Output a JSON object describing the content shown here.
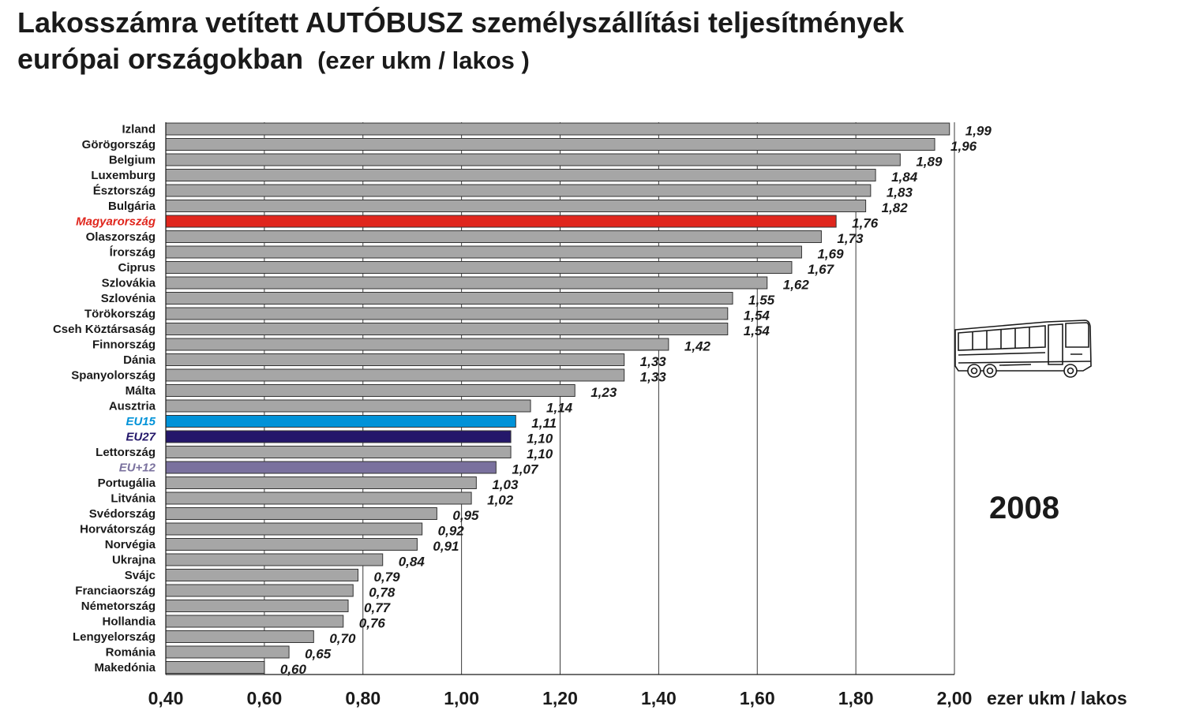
{
  "title": {
    "line1": "Lakosszámra vetített AUTÓBUSZ személyszállítási teljesítmények",
    "line2": "európai országokban",
    "unit": "(ezer ukm / lakos )"
  },
  "year": "2008",
  "colors": {
    "default_bar": "#a6a6a6",
    "hungary": "#e0261d",
    "eu15": "#0092d8",
    "eu27": "#24176a",
    "eu12": "#7a719e",
    "text": "#1a1a1a"
  },
  "chart_data": {
    "type": "bar",
    "orientation": "horizontal",
    "xlabel": "ezer ukm / lakos",
    "xlim": [
      0.4,
      2.0
    ],
    "xticks": [
      "0,40",
      "0,60",
      "0,80",
      "1,00",
      "1,20",
      "1,40",
      "1,60",
      "1,80",
      "2,00"
    ],
    "xtick_values": [
      0.4,
      0.6,
      0.8,
      1.0,
      1.2,
      1.4,
      1.6,
      1.8,
      2.0
    ],
    "grid": "vertical",
    "categories": [
      "Izland",
      "Görögország",
      "Belgium",
      "Luxemburg",
      "Észtország",
      "Bulgária",
      "Magyarország",
      "Olaszország",
      "Írország",
      "Ciprus",
      "Szlovákia",
      "Szlovénia",
      "Törökország",
      "Cseh Köztársaság",
      "Finnország",
      "Dánia",
      "Spanyolország",
      "Málta",
      "Ausztria",
      "EU15",
      "EU27",
      "Lettország",
      "EU+12",
      "Portugália",
      "Litvánia",
      "Svédország",
      "Horvátország",
      "Norvégia",
      "Ukrajna",
      "Svájc",
      "Franciaország",
      "Németország",
      "Hollandia",
      "Lengyelország",
      "Románia",
      "Makedónia"
    ],
    "values": [
      1.99,
      1.96,
      1.89,
      1.84,
      1.83,
      1.82,
      1.76,
      1.73,
      1.69,
      1.67,
      1.62,
      1.55,
      1.54,
      1.54,
      1.42,
      1.33,
      1.33,
      1.23,
      1.14,
      1.11,
      1.1,
      1.1,
      1.07,
      1.03,
      1.02,
      0.95,
      0.92,
      0.91,
      0.84,
      0.79,
      0.78,
      0.77,
      0.76,
      0.7,
      0.65,
      0.6
    ],
    "value_labels": [
      "1,99",
      "1,96",
      "1,89",
      "1,84",
      "1,83",
      "1,82",
      "1,76",
      "1,73",
      "1,69",
      "1,67",
      "1,62",
      "1,55",
      "1,54",
      "1,54",
      "1,42",
      "1,33",
      "1,33",
      "1,23",
      "1,14",
      "1,11",
      "1,10",
      "1,10",
      "1,07",
      "1,03",
      "1,02",
      "0,95",
      "0,92",
      "0,91",
      "0,84",
      "0,79",
      "0,78",
      "0,77",
      "0,76",
      "0,70",
      "0,65",
      "0,60"
    ],
    "highlight": {
      "Magyarország": "hungary",
      "EU15": "eu15",
      "EU27": "eu27",
      "EU+12": "eu12"
    }
  }
}
